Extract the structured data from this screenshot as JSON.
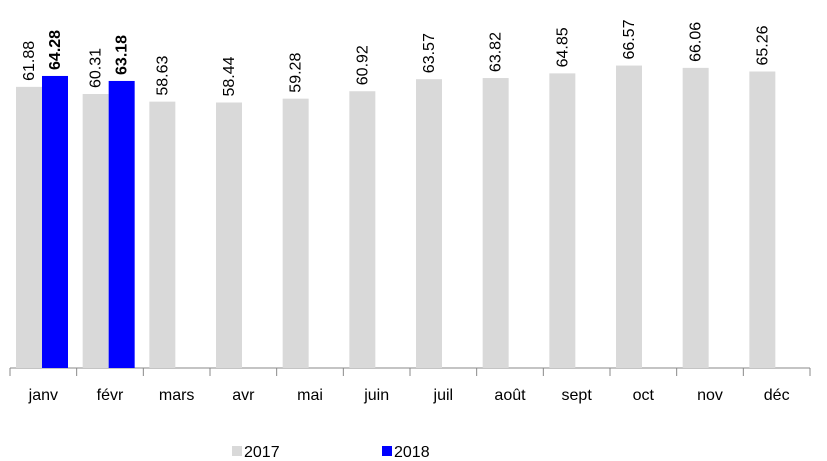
{
  "chart_data": {
    "type": "bar",
    "categories": [
      "janv",
      "févr",
      "mars",
      "avr",
      "mai",
      "juin",
      "juil",
      "août",
      "sept",
      "oct",
      "nov",
      "déc"
    ],
    "series": [
      {
        "name": "2017",
        "color": "#d9d9d9",
        "values": [
          61.88,
          60.31,
          58.63,
          58.44,
          59.28,
          60.92,
          63.57,
          63.82,
          64.85,
          66.57,
          66.06,
          65.26
        ]
      },
      {
        "name": "2018",
        "color": "#0000ff",
        "values": [
          64.28,
          63.18,
          null,
          null,
          null,
          null,
          null,
          null,
          null,
          null,
          null,
          null
        ]
      }
    ],
    "ylim": [
      0,
      81
    ],
    "legend": "bottom"
  }
}
